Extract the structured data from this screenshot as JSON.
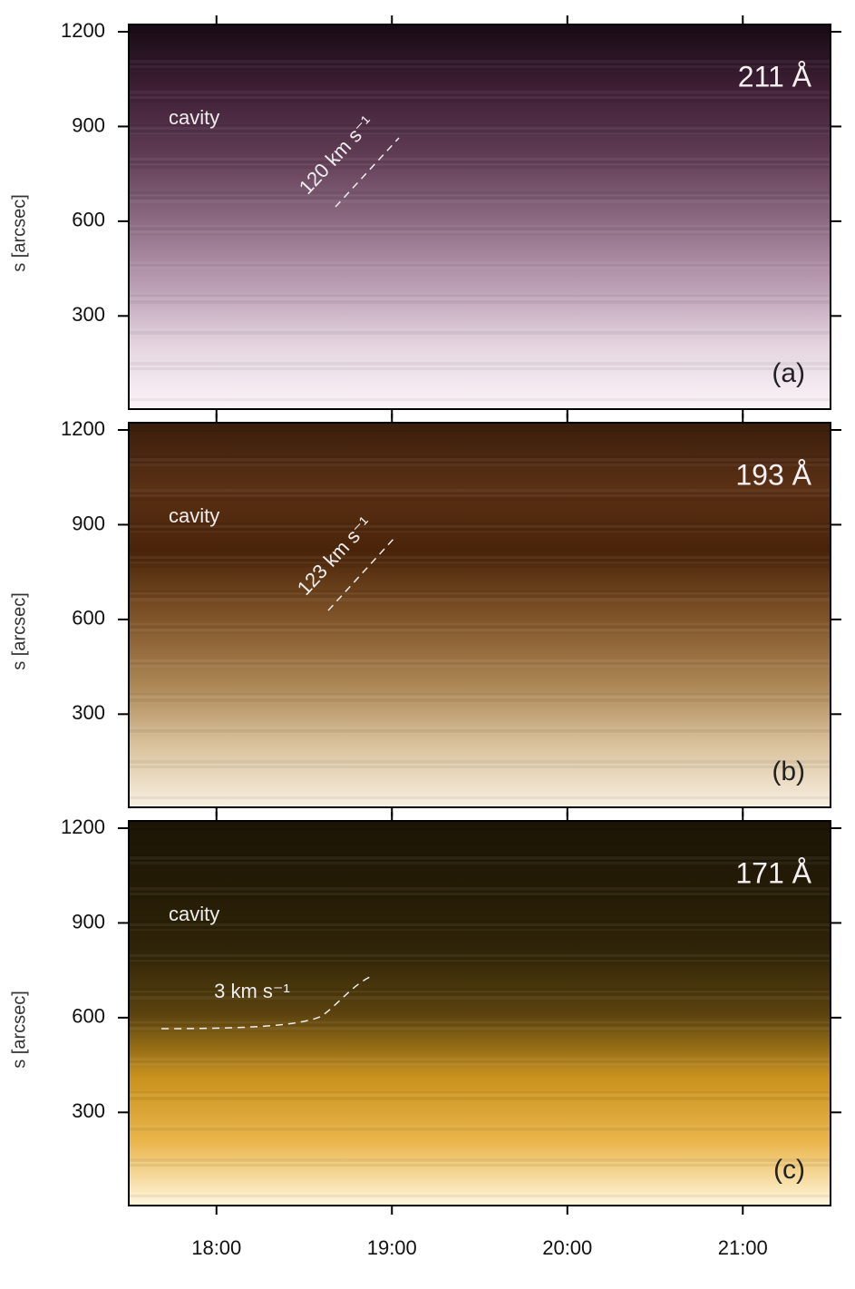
{
  "chart_data": [
    {
      "type": "image",
      "panel_label": "(a)",
      "wavelength": "211 Å",
      "annotation": "cavity",
      "speed_label": "120 km s⁻¹",
      "ylabel": "s [arcsec]",
      "ylim": [
        5,
        1223
      ],
      "yticks": [
        300,
        600,
        900,
        1200
      ],
      "xlim": [
        17.5,
        21.5
      ],
      "xticks": [
        18,
        19,
        20,
        21
      ],
      "colors": [
        "#170b14",
        "#3e1f35",
        "#5e3b53",
        "#8a6880",
        "#b79ab0",
        "#e4d4df",
        "#fbf4f8"
      ]
    },
    {
      "type": "image",
      "panel_label": "(b)",
      "wavelength": "193 Å",
      "annotation": "cavity",
      "speed_label": "123 km s⁻¹",
      "ylabel": "s [arcsec]",
      "ylim": [
        5,
        1223
      ],
      "yticks": [
        300,
        600,
        900,
        1200
      ],
      "xlim": [
        17.5,
        21.5
      ],
      "xticks": [
        18,
        19,
        20,
        21
      ],
      "colors": [
        "#3a1e0c",
        "#5a3014",
        "#4a2409",
        "#7e5227",
        "#a88250",
        "#d8c09a",
        "#f8efe0"
      ]
    },
    {
      "type": "image",
      "panel_label": "(c)",
      "wavelength": "171 Å",
      "annotation": "cavity",
      "speed_label": "3 km s⁻¹",
      "ylabel": "s [arcsec]",
      "ylim": [
        5,
        1223
      ],
      "yticks": [
        300,
        600,
        900,
        1200
      ],
      "xlim": [
        17.5,
        21.5
      ],
      "xticks": [
        {
          "value": 18,
          "label": "18:00"
        },
        {
          "value": 19,
          "label": "19:00"
        },
        {
          "value": 20,
          "label": "20:00"
        },
        {
          "value": 21,
          "label": "21:00"
        }
      ],
      "colors": [
        "#1c1506",
        "#241b06",
        "#2f2408",
        "#5a420e",
        "#c9921e",
        "#eab54a",
        "#fff7e0"
      ]
    }
  ]
}
